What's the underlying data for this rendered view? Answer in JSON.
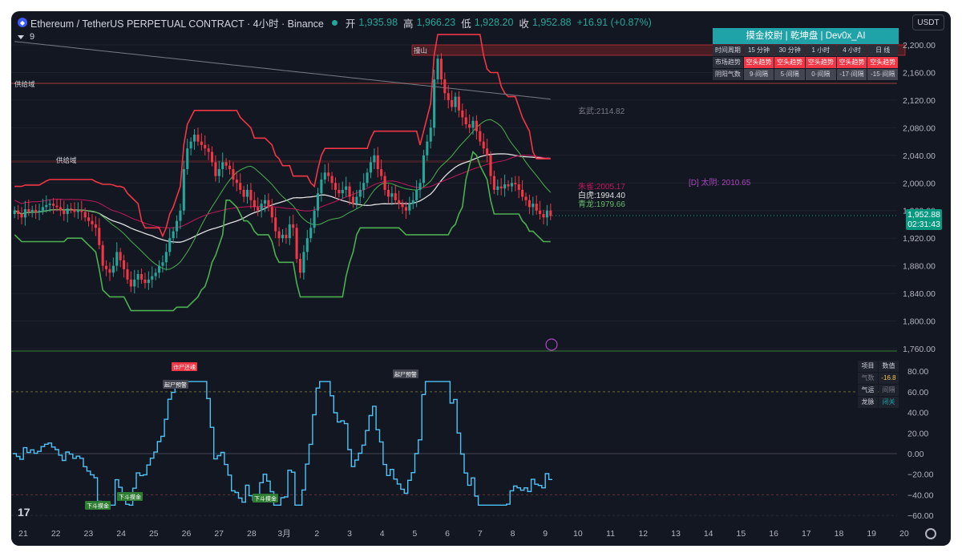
{
  "header": {
    "title": "Ethereum / TetherUS PERPETUAL CONTRACT · 4小时 · Binance",
    "open_label": "开",
    "open": "1,935.98",
    "high_label": "高",
    "high": "1,966.23",
    "low_label": "低",
    "low": "1,928.20",
    "close_label": "收",
    "close": "1,952.88",
    "change": "+16.91 (+0.87%)"
  },
  "sub_legend": {
    "count": "9"
  },
  "currency_button": "USDT",
  "current_price": {
    "price": "1,952.88",
    "countdown": "02:31:43"
  },
  "price_axis": [
    "2,200.00",
    "2,160.00",
    "2,120.00",
    "2,080.00",
    "2,040.00",
    "2,000.00",
    "1,960.00",
    "1,920.00",
    "1,880.00",
    "1,840.00",
    "1,800.00",
    "1,760.00"
  ],
  "osc_axis": [
    "80.00",
    "60.00",
    "40.00",
    "20.00",
    "0.00",
    "−20.00",
    "−40.00",
    "−60.00"
  ],
  "time_axis": [
    "21",
    "22",
    "23",
    "24",
    "25",
    "26",
    "27",
    "28",
    "3月",
    "2",
    "3",
    "4",
    "5",
    "6",
    "7",
    "8",
    "9",
    "10",
    "11",
    "12",
    "13",
    "14",
    "15",
    "16",
    "17",
    "18",
    "19",
    "20"
  ],
  "zone_labels": {
    "supply1": "供给域",
    "supply2": "供给域",
    "resistance": "撞山"
  },
  "level_labels": {
    "xuanwu": "玄武:2114.82",
    "zhuque": "朱雀:2005.17",
    "baihu": "白虎:1994.40",
    "qinglong": "青龙:1979.66",
    "taiyin": "[D] 太阴: 2010.65"
  },
  "info_table": {
    "title": "摸金校尉 | 乾坤盘 | Dev0x_AI",
    "headers": [
      "时间周期",
      "15 分钟",
      "30 分钟",
      "1 小时",
      "4 小时",
      "日 线"
    ],
    "trend_label": "市场趋势",
    "trend": [
      "空头趋势",
      "空头趋势",
      "空头趋势",
      "空头趋势",
      "空头趋势"
    ],
    "yinyang_label": "阴阳气数",
    "yinyang": [
      "9·间隔",
      "5·间隔",
      "0·间隔",
      "-17·间隔",
      "-15·间隔"
    ]
  },
  "sub_table": {
    "headers": [
      "项目",
      "数值"
    ],
    "rows": [
      [
        "气数",
        "-16.8"
      ],
      [
        "气运",
        "间隔"
      ],
      [
        "龙脉",
        "闭关"
      ]
    ]
  },
  "osc_tags": {
    "zhashi": "诈尸还魂",
    "qishi1": "起尸预警",
    "qishi2": "起尸预警",
    "down1": "下斗摸金",
    "down2": "下斗摸金",
    "down3": "下斗摸金"
  },
  "colors": {
    "bull": "#26a69a",
    "bear": "#f23645",
    "osc": "#4fc3f7",
    "accent": "#1fa3a8"
  },
  "chart_data": {
    "type": "candlestick",
    "ylim": [
      1760,
      2210
    ],
    "osc_ylim": [
      -70,
      85
    ],
    "closes": [
      1960,
      1955,
      1950,
      1962,
      1958,
      1961,
      1958,
      1960,
      1965,
      1968,
      1970,
      1967,
      1965,
      1960,
      1955,
      1963,
      1962,
      1958,
      1960,
      1958,
      1950,
      1945,
      1940,
      1935,
      1910,
      1880,
      1875,
      1870,
      1880,
      1900,
      1888,
      1875,
      1860,
      1850,
      1860,
      1868,
      1860,
      1855,
      1860,
      1865,
      1870,
      1880,
      1885,
      1900,
      1920,
      1930,
      1945,
      1960,
      2020,
      2050,
      2060,
      2070,
      2060,
      2055,
      2050,
      2045,
      2030,
      2010,
      2020,
      2030,
      2025,
      2020,
      2005,
      2000,
      1990,
      1980,
      1990,
      1975,
      1965,
      1960,
      1970,
      1975,
      1965,
      1950,
      1930,
      1920,
      1925,
      1920,
      1940,
      1935,
      1890,
      1870,
      1900,
      1920,
      1935,
      1960,
      1985,
      2005,
      2015,
      2010,
      2000,
      1990,
      1985,
      1990,
      1995,
      1980,
      1970,
      1980,
      1990,
      2000,
      2015,
      2030,
      2040,
      2020,
      2010,
      1990,
      1980,
      1985,
      1975,
      1970,
      1965,
      1960,
      1970,
      1975,
      1990,
      2000,
      2040,
      2060,
      2080,
      2150,
      2180,
      2150,
      2130,
      2120,
      2110,
      2125,
      2105,
      2095,
      2085,
      2080,
      2090,
      2075,
      2060,
      2050,
      2040,
      2010,
      1990,
      1995,
      1992,
      1998,
      1995,
      2000,
      1998,
      1990,
      1980,
      1975,
      1965,
      1970,
      1960,
      1955,
      1950,
      1960,
      1952
    ]
  }
}
